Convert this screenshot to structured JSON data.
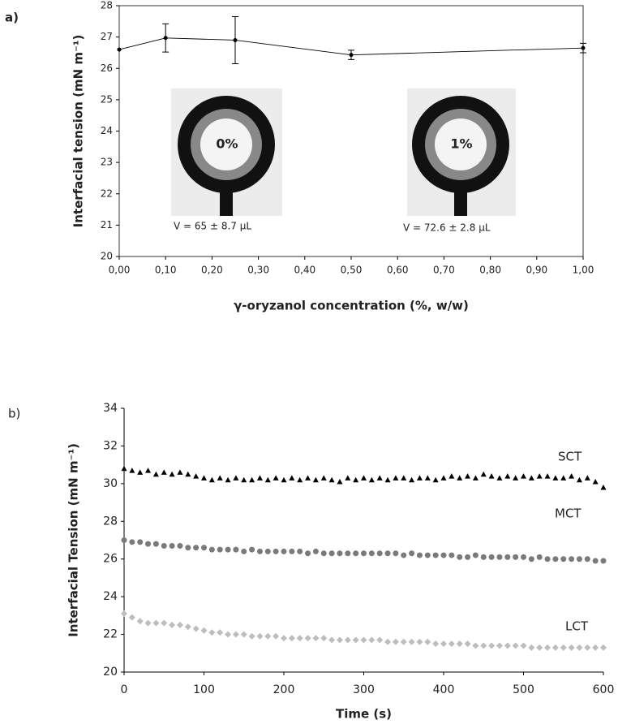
{
  "chart_data": [
    {
      "type": "line",
      "panel_label": "a)",
      "x_label": "γ-oryzanol concentration (%, w/w)",
      "y_label": "Interfacial tension (mN m⁻¹)",
      "x": [
        0,
        0.1,
        0.25,
        0.5,
        1.0
      ],
      "values": [
        26.6,
        26.97,
        26.9,
        26.43,
        26.65
      ],
      "errors": [
        null,
        0.45,
        0.75,
        0.15,
        0.15
      ],
      "color": "#000000",
      "xlim": [
        0,
        1
      ],
      "ylim": [
        20,
        28
      ],
      "xticks": [
        {
          "value": 0,
          "label": "0,00"
        },
        {
          "value": 0.1,
          "label": "0,10"
        },
        {
          "value": 0.2,
          "label": "0,20"
        },
        {
          "value": 0.3,
          "label": "0,30"
        },
        {
          "value": 0.4,
          "label": "0,40"
        },
        {
          "value": 0.5,
          "label": "0,50"
        },
        {
          "value": 0.6,
          "label": "0,60"
        },
        {
          "value": 0.7,
          "label": "0,70"
        },
        {
          "value": 0.8,
          "label": "0,80"
        },
        {
          "value": 0.9,
          "label": "0,90"
        },
        {
          "value": 1.0,
          "label": "1,00"
        }
      ],
      "yticks": [
        20,
        21,
        22,
        23,
        24,
        25,
        26,
        27,
        28
      ],
      "annotations": [
        "0%",
        "1%",
        "V = 65 ± 8.7 µL",
        "V = 72.6 ± 2.8 µL"
      ]
    },
    {
      "type": "scatter",
      "panel_label": "b)",
      "x_label": "Time (s)",
      "y_label": "Interfacial Tension (mN m⁻¹)",
      "x": [
        0,
        10,
        20,
        30,
        40,
        50,
        60,
        70,
        80,
        90,
        100,
        110,
        120,
        130,
        140,
        150,
        160,
        170,
        180,
        190,
        200,
        210,
        220,
        230,
        240,
        250,
        260,
        270,
        280,
        290,
        300,
        310,
        320,
        330,
        340,
        350,
        360,
        370,
        380,
        390,
        400,
        410,
        420,
        430,
        440,
        450,
        460,
        470,
        480,
        490,
        500,
        510,
        520,
        530,
        540,
        550,
        560,
        570,
        580,
        590,
        600
      ],
      "series": [
        {
          "name": "SCT",
          "color": "#000000",
          "marker": "triangle",
          "values": [
            30.8,
            30.7,
            30.6,
            30.7,
            30.5,
            30.6,
            30.5,
            30.6,
            30.5,
            30.4,
            30.3,
            30.2,
            30.3,
            30.2,
            30.3,
            30.2,
            30.2,
            30.3,
            30.2,
            30.3,
            30.2,
            30.3,
            30.2,
            30.3,
            30.2,
            30.3,
            30.2,
            30.1,
            30.3,
            30.2,
            30.3,
            30.2,
            30.3,
            30.2,
            30.3,
            30.3,
            30.2,
            30.3,
            30.3,
            30.2,
            30.3,
            30.4,
            30.3,
            30.4,
            30.3,
            30.5,
            30.4,
            30.3,
            30.4,
            30.3,
            30.4,
            30.3,
            30.4,
            30.4,
            30.3,
            30.3,
            30.4,
            30.2,
            30.3,
            30.1,
            29.8
          ]
        },
        {
          "name": "MCT",
          "color": "#7a7a7a",
          "marker": "circle",
          "values": [
            27.0,
            26.9,
            26.9,
            26.8,
            26.8,
            26.7,
            26.7,
            26.7,
            26.6,
            26.6,
            26.6,
            26.5,
            26.5,
            26.5,
            26.5,
            26.4,
            26.5,
            26.4,
            26.4,
            26.4,
            26.4,
            26.4,
            26.4,
            26.3,
            26.4,
            26.3,
            26.3,
            26.3,
            26.3,
            26.3,
            26.3,
            26.3,
            26.3,
            26.3,
            26.3,
            26.2,
            26.3,
            26.2,
            26.2,
            26.2,
            26.2,
            26.2,
            26.1,
            26.1,
            26.2,
            26.1,
            26.1,
            26.1,
            26.1,
            26.1,
            26.1,
            26.0,
            26.1,
            26.0,
            26.0,
            26.0,
            26.0,
            26.0,
            26.0,
            25.9,
            25.9
          ]
        },
        {
          "name": "LCT",
          "color": "#bdbdbd",
          "marker": "diamond",
          "values": [
            23.1,
            22.9,
            22.7,
            22.6,
            22.6,
            22.6,
            22.5,
            22.5,
            22.4,
            22.3,
            22.2,
            22.1,
            22.1,
            22.0,
            22.0,
            22.0,
            21.9,
            21.9,
            21.9,
            21.9,
            21.8,
            21.8,
            21.8,
            21.8,
            21.8,
            21.8,
            21.7,
            21.7,
            21.7,
            21.7,
            21.7,
            21.7,
            21.7,
            21.6,
            21.6,
            21.6,
            21.6,
            21.6,
            21.6,
            21.5,
            21.5,
            21.5,
            21.5,
            21.5,
            21.4,
            21.4,
            21.4,
            21.4,
            21.4,
            21.4,
            21.4,
            21.3,
            21.3,
            21.3,
            21.3,
            21.3,
            21.3,
            21.3,
            21.3,
            21.3,
            21.3
          ]
        }
      ],
      "xlim": [
        0,
        600
      ],
      "ylim": [
        20,
        34
      ],
      "xticks": [
        0,
        100,
        200,
        300,
        400,
        500,
        600
      ],
      "yticks": [
        20,
        22,
        24,
        26,
        28,
        30,
        32,
        34
      ]
    }
  ]
}
